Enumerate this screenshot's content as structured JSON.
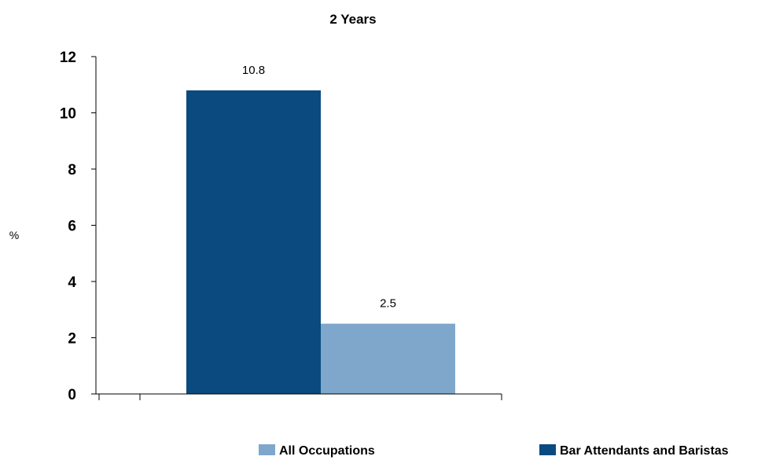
{
  "chart_data": {
    "type": "bar",
    "title": "2 Years",
    "xlabel": "",
    "ylabel": "%",
    "ylim": [
      0,
      12
    ],
    "yticks": [
      0,
      2,
      4,
      6,
      8,
      10,
      12
    ],
    "categories": [
      ""
    ],
    "series": [
      {
        "name": "Bar Attendants and Baristas",
        "color": "#0a4a7f",
        "values": [
          10.8
        ],
        "data_labels": [
          "10.8"
        ]
      },
      {
        "name": "All Occupations",
        "color": "#7fa7cc",
        "values": [
          2.5
        ],
        "data_labels": [
          "2.5"
        ]
      }
    ],
    "legend": {
      "placement": "bottom",
      "order": [
        "All Occupations",
        "Bar Attendants and Baristas"
      ]
    },
    "grid": false
  }
}
